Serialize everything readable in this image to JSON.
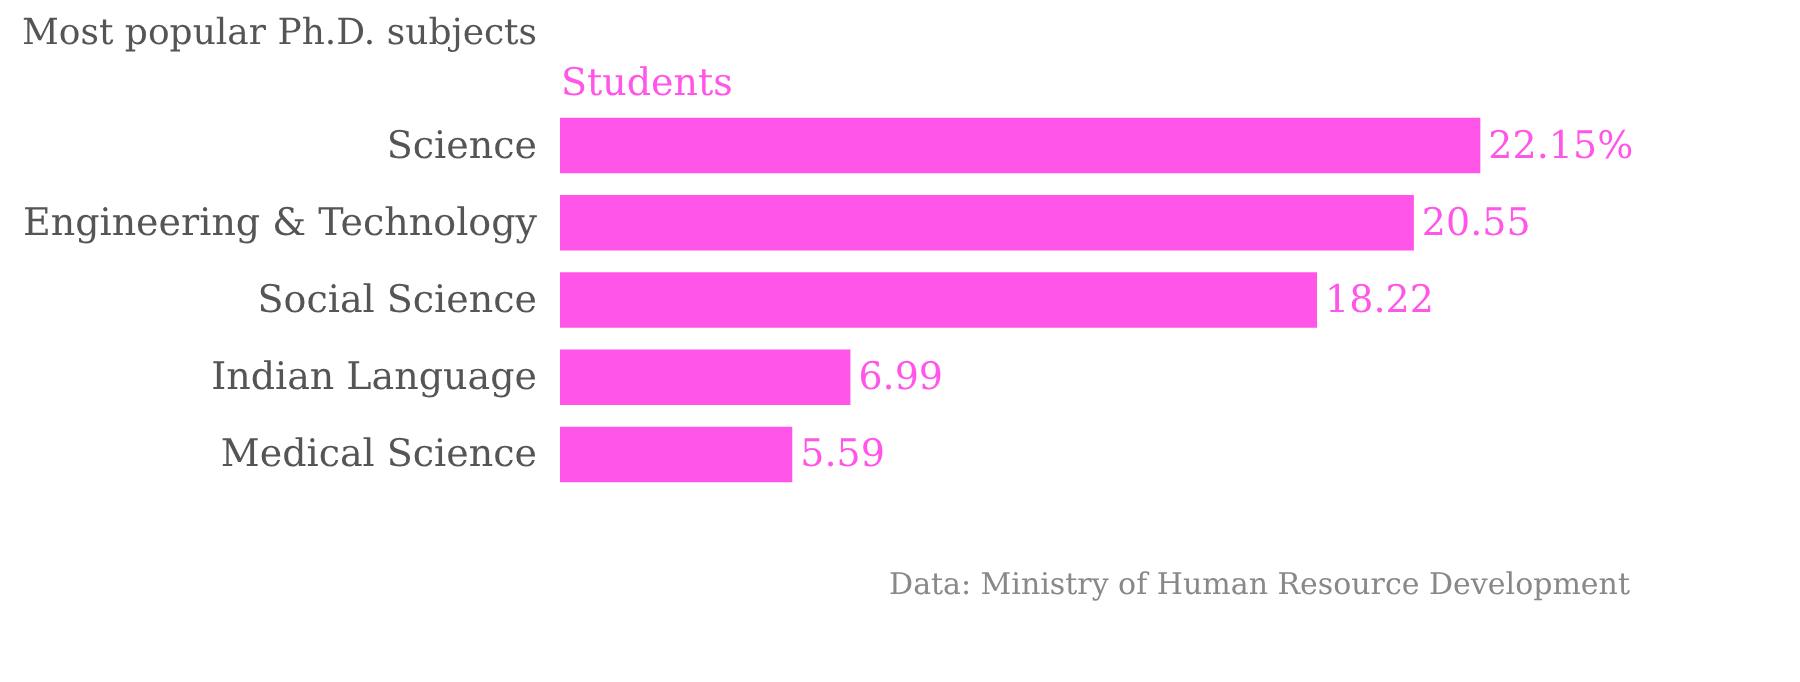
{
  "chart_data": {
    "type": "bar",
    "orientation": "horizontal",
    "title": "Most popular Ph.D. subjects",
    "categories": [
      "Science",
      "Engineering & Technology",
      "Social Science",
      "Indian Language",
      "Medical Science"
    ],
    "series": [
      {
        "name": "Students",
        "color": "#ff55e8",
        "values": [
          22.15,
          20.55,
          18.22,
          6.99,
          5.59
        ],
        "value_labels": [
          "22.15%",
          "20.55",
          "18.22",
          "6.99",
          "5.59"
        ]
      }
    ],
    "legend": "top left",
    "grid": false,
    "annotations": [
      "Data: Ministry of Human Resource Development"
    ]
  }
}
